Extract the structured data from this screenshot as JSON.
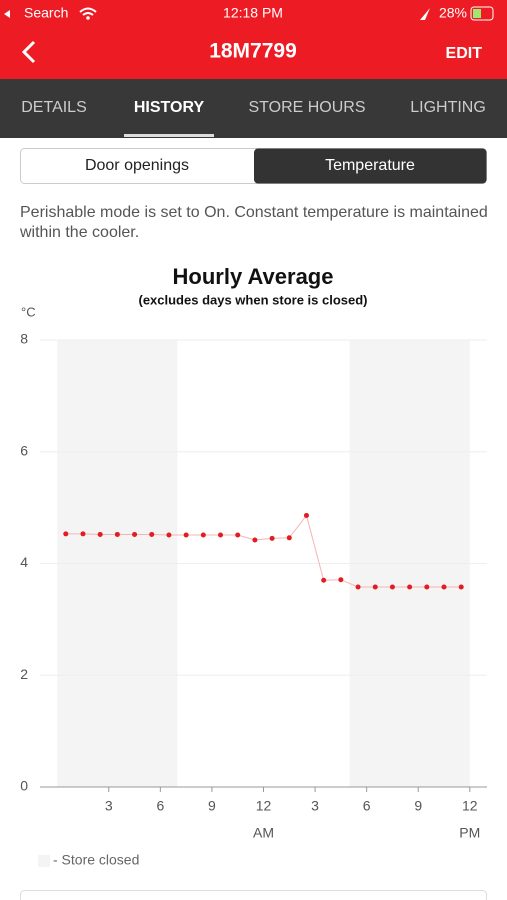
{
  "status_bar": {
    "back_app": "Search",
    "time": "12:18 PM",
    "battery": "28%"
  },
  "header": {
    "title": "18M7799",
    "action": "EDIT"
  },
  "tabs": [
    "DETAILS",
    "HISTORY",
    "STORE HOURS",
    "LIGHTING"
  ],
  "segments": [
    "Door openings",
    "Temperature"
  ],
  "description": "Perishable mode is set to On. Constant temperature is maintained within the cooler.",
  "chart_data": {
    "type": "line",
    "title": "Hourly Average",
    "subtitle": "(excludes days when store is closed)",
    "y_label": "°C",
    "x": [
      0.5,
      1.5,
      2.5,
      3.5,
      4.5,
      5.5,
      6.5,
      7.5,
      8.5,
      9.5,
      10.5,
      11.5,
      12.5,
      13.5,
      14.5,
      15.5,
      16.5,
      17.5,
      18.5,
      19.5,
      20.5,
      21.5,
      22.5,
      23.5
    ],
    "values": [
      4.53,
      4.53,
      4.52,
      4.52,
      4.52,
      4.52,
      4.51,
      4.51,
      4.51,
      4.51,
      4.51,
      4.42,
      4.45,
      4.46,
      4.86,
      3.7,
      3.71,
      3.58,
      3.58,
      3.58,
      3.58,
      3.58,
      3.58,
      3.58
    ],
    "color": "#e31b23",
    "line_color": "#f6b3b6",
    "xlim": [
      -1,
      25
    ],
    "ylim": [
      0,
      8
    ],
    "xticks": [
      3,
      6,
      9,
      12,
      {
        "value": 15,
        "label": "3"
      },
      {
        "value": 18,
        "label": "6"
      },
      {
        "value": 21,
        "label": "9"
      },
      {
        "value": 24,
        "label": "12"
      }
    ],
    "x_sublabels": [
      {
        "value": 12,
        "label": "AM"
      },
      {
        "value": 24,
        "label": "PM"
      }
    ],
    "yticks": [
      0,
      2,
      4,
      6,
      8
    ],
    "grid": true,
    "shaded": [
      [
        0,
        7
      ],
      [
        17,
        24
      ]
    ],
    "shade_color": "#f4f4f4",
    "shade_label": "- Store closed"
  }
}
